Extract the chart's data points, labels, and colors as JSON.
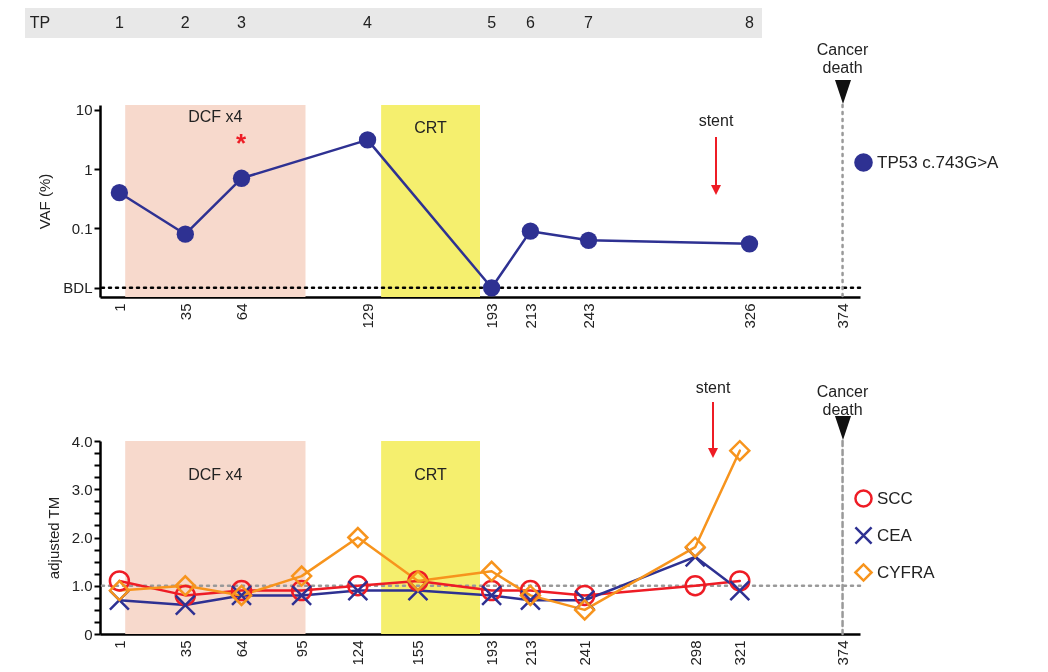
{
  "chart_data": [
    {
      "type": "other",
      "annotations": [
        "TP",
        "1",
        "2",
        "3",
        "4",
        "5",
        "6",
        "7",
        "8"
      ]
    },
    {
      "type": "line",
      "ylabel": "VAF (%)",
      "x": [
        1,
        35,
        64,
        129,
        193,
        213,
        243,
        326
      ],
      "series": [
        {
          "name": "TP53 c.743G>A",
          "color": "#2e3192",
          "values": [
            0.4,
            0.08,
            0.7,
            3.1,
            0.01,
            0.09,
            0.063,
            0.055
          ]
        }
      ],
      "log": true,
      "xlim": [
        -9,
        383
      ],
      "xticks": [
        1,
        35,
        64,
        129,
        193,
        213,
        243,
        326,
        374
      ],
      "ylim": [
        0.007,
        12
      ],
      "yticks": [
        {
          "value": 0.01,
          "label": "BDL"
        },
        0.1,
        1,
        10
      ],
      "marker": "circle",
      "grid": false,
      "legend": "right",
      "bands": [
        {
          "axis": "x",
          "from": 4,
          "to": 97,
          "label": "DCF x4",
          "color": "#f7d9cc"
        },
        {
          "axis": "x",
          "from": 136,
          "to": 187,
          "label": "CRT",
          "color": "#f5ef6e"
        }
      ],
      "ref_lines": [
        {
          "axis": "y",
          "value": 0.01,
          "color": "#000000",
          "line_style": "dotted"
        },
        {
          "axis": "x",
          "value": 374,
          "label": "Cancer death",
          "color": "#999999",
          "line_style": "dotted"
        }
      ],
      "annotations": [
        "*",
        "stent"
      ]
    },
    {
      "type": "line",
      "ylabel": "adjusted TM",
      "x": [
        1,
        35,
        64,
        95,
        124,
        155,
        193,
        213,
        241,
        298,
        321
      ],
      "series": [
        {
          "name": "SCC",
          "color": "#ee1c25",
          "marker": "circle",
          "values": [
            1.1,
            0.8,
            0.9,
            0.9,
            1.0,
            1.1,
            0.9,
            0.9,
            0.8,
            1.0,
            1.1
          ]
        },
        {
          "name": "CEA",
          "color": "#2e3192",
          "marker": "cross",
          "values": [
            0.7,
            0.6,
            0.8,
            0.8,
            0.9,
            0.9,
            0.8,
            0.7,
            0.7,
            1.6,
            0.9
          ]
        },
        {
          "name": "CYFRA",
          "color": "#f7941d",
          "marker": "diamond",
          "values": [
            0.9,
            1.0,
            0.8,
            1.2,
            2.0,
            1.1,
            1.3,
            0.8,
            0.5,
            1.8,
            3.8
          ]
        }
      ],
      "xlim": [
        -9,
        383
      ],
      "xticks": [
        1,
        35,
        64,
        95,
        124,
        155,
        193,
        213,
        241,
        298,
        321,
        374
      ],
      "ylim": [
        0,
        4.0
      ],
      "yticks": [
        0,
        {
          "value": 0.25,
          "label": null
        },
        {
          "value": 0.5,
          "label": null
        },
        {
          "value": 0.75,
          "label": null
        },
        {
          "value": 1,
          "label": "1.0"
        },
        {
          "value": 1.25,
          "label": null
        },
        {
          "value": 1.5,
          "label": null
        },
        {
          "value": 1.75,
          "label": null
        },
        {
          "value": 2,
          "label": "2.0"
        },
        {
          "value": 2.25,
          "label": null
        },
        {
          "value": 2.5,
          "label": null
        },
        {
          "value": 2.75,
          "label": null
        },
        {
          "value": 3,
          "label": "3.0"
        },
        {
          "value": 3.25,
          "label": null
        },
        {
          "value": 3.5,
          "label": null
        },
        {
          "value": 3.75,
          "label": null
        },
        {
          "value": 4,
          "label": "4.0"
        }
      ],
      "grid": false,
      "legend": "right",
      "bands": [
        {
          "axis": "x",
          "from": 4,
          "to": 97,
          "label": "DCF x4",
          "color": "#f7d9cc"
        },
        {
          "axis": "x",
          "from": 136,
          "to": 187,
          "label": "CRT",
          "color": "#f5ef6e"
        }
      ],
      "ref_lines": [
        {
          "axis": "y",
          "value": 1,
          "color": "#999999",
          "line_style": "dotted"
        },
        {
          "axis": "x",
          "value": 374,
          "label": "Cancer death",
          "color": "#999999",
          "line_style": "dashed"
        }
      ],
      "annotations": [
        "stent"
      ]
    }
  ]
}
